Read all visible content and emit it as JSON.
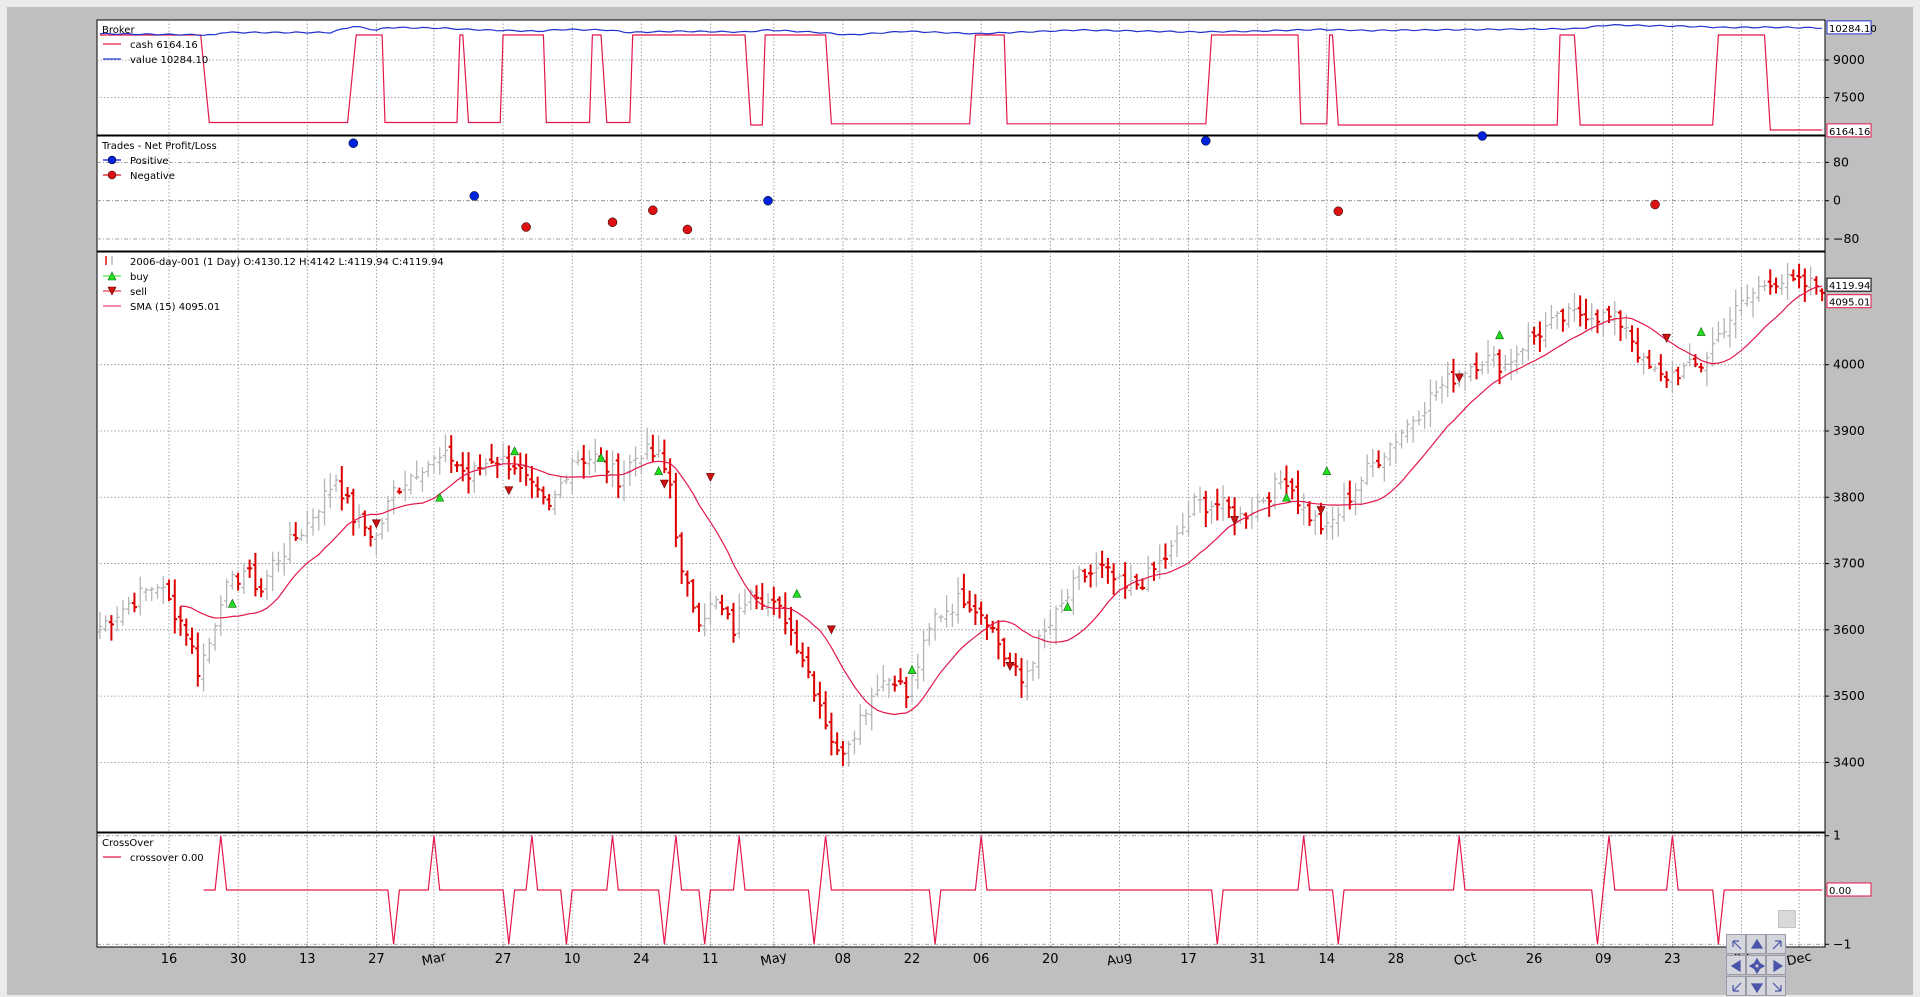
{
  "colors": {
    "up_bar": "#b4b4b4",
    "down_bar": "#dd0000",
    "sma": "#e4174b",
    "cash": "#e4174b",
    "value": "#2233cc",
    "positive": "#0022dd",
    "negative": "#dd1111",
    "buy": "#22dd22",
    "sell": "#cc1111",
    "crossover": "#e4174b"
  },
  "toolbar": {
    "icons": [
      "pan-nw-icon",
      "pan-up-icon",
      "pan-ne-icon",
      "pan-left-icon",
      "pan-move-icon",
      "pan-right-icon",
      "pan-sw-icon",
      "pan-down-icon",
      "pan-se-icon"
    ]
  },
  "chart_data": [
    {
      "type": "line",
      "panel": "broker",
      "title": "Broker",
      "legend": [
        {
          "name": "cash 6164.16",
          "color": "#e4174b"
        },
        {
          "name": "value 10284.10",
          "color": "#2233cc"
        }
      ],
      "yticks": [
        7500,
        9000
      ],
      "ylim": [
        6000,
        10600
      ],
      "last_labels": [
        {
          "text": "10284.10",
          "value": 10284.1,
          "color": "#2233cc"
        },
        {
          "text": "6164.16",
          "value": 6164.16,
          "color": "#e4174b"
        }
      ],
      "cash_segments": [
        [
          0,
          10000
        ],
        [
          17.5,
          10000
        ],
        [
          19,
          6500
        ],
        [
          43,
          6500
        ],
        [
          44.5,
          10000
        ],
        [
          49,
          10000
        ],
        [
          49.5,
          6500
        ],
        [
          62,
          6500
        ],
        [
          62.5,
          10000
        ],
        [
          63,
          10000
        ],
        [
          64,
          6500
        ],
        [
          69.5,
          6500
        ],
        [
          70,
          10000
        ],
        [
          77,
          10000
        ],
        [
          77.5,
          6500
        ],
        [
          85,
          6500
        ],
        [
          85.5,
          10000
        ],
        [
          87,
          10000
        ],
        [
          88,
          6500
        ],
        [
          92,
          6500
        ],
        [
          92.5,
          10000
        ],
        [
          112,
          10000
        ],
        [
          113,
          6400
        ],
        [
          115,
          6400
        ],
        [
          115.5,
          10000
        ],
        [
          126,
          10000
        ],
        [
          127,
          6450
        ],
        [
          151,
          6450
        ],
        [
          152,
          10000
        ],
        [
          157,
          10000
        ],
        [
          157.5,
          6450
        ],
        [
          192,
          6450
        ],
        [
          193,
          10000
        ],
        [
          208,
          10000
        ],
        [
          208.5,
          6450
        ],
        [
          213,
          6450
        ],
        [
          213.5,
          10000
        ],
        [
          214,
          10000
        ],
        [
          215,
          6400
        ],
        [
          253,
          6400
        ],
        [
          253.5,
          10000
        ],
        [
          256,
          10000
        ],
        [
          257,
          6400
        ],
        [
          280,
          6400
        ],
        [
          281,
          10000
        ],
        [
          289,
          10000
        ],
        [
          290,
          6200
        ],
        [
          299,
          6200
        ]
      ],
      "value_points": [
        [
          0,
          10050
        ],
        [
          20,
          10000
        ],
        [
          21,
          10100
        ],
        [
          40,
          10100
        ],
        [
          44,
          10350
        ],
        [
          48,
          10200
        ],
        [
          50,
          10300
        ],
        [
          60,
          10270
        ],
        [
          63,
          10230
        ],
        [
          67,
          10200
        ],
        [
          76,
          10150
        ],
        [
          80,
          10220
        ],
        [
          88,
          10200
        ],
        [
          92,
          10100
        ],
        [
          100,
          10150
        ],
        [
          112,
          10120
        ],
        [
          116,
          10200
        ],
        [
          125,
          10100
        ],
        [
          130,
          10000
        ],
        [
          140,
          10150
        ],
        [
          152,
          10050
        ],
        [
          158,
          10100
        ],
        [
          170,
          10200
        ],
        [
          190,
          10120
        ],
        [
          200,
          10150
        ],
        [
          208,
          10200
        ],
        [
          212,
          10220
        ],
        [
          220,
          10180
        ],
        [
          240,
          10220
        ],
        [
          256,
          10250
        ],
        [
          262,
          10400
        ],
        [
          275,
          10350
        ],
        [
          282,
          10300
        ],
        [
          290,
          10310
        ],
        [
          299,
          10284.1
        ]
      ]
    },
    {
      "type": "scatter",
      "panel": "trades",
      "title": "Trades - Net Profit/Loss",
      "legend": [
        {
          "name": "Positive",
          "color": "#0022dd"
        },
        {
          "name": "Negative",
          "color": "#dd1111"
        }
      ],
      "yticks": [
        -80,
        0,
        80
      ],
      "ylim": [
        -105,
        135
      ],
      "series": [
        {
          "name": "Positive",
          "points": [
            [
              44,
              120
            ],
            [
              65,
              10
            ],
            [
              116,
              0
            ],
            [
              192,
              125
            ],
            [
              240,
              135
            ]
          ]
        },
        {
          "name": "Negative",
          "points": [
            [
              74,
              -55
            ],
            [
              89,
              -45
            ],
            [
              96,
              -20
            ],
            [
              102,
              -60
            ],
            [
              215,
              -22
            ],
            [
              270,
              -8
            ]
          ]
        }
      ]
    },
    {
      "type": "candlestick",
      "panel": "price",
      "legend_title": "2006-day-001 (1 Day) O:4130.12 H:4142 L:4119.94 C:4119.94",
      "legend": [
        {
          "name": "buy",
          "color": "#22dd22"
        },
        {
          "name": "sell",
          "color": "#cc1111"
        },
        {
          "name": "SMA (15) 4095.01",
          "color": "#e4174b"
        }
      ],
      "yticks": [
        3400,
        3500,
        3600,
        3700,
        3800,
        3900,
        4000
      ],
      "ylim": [
        3295,
        4170
      ],
      "last_labels": [
        {
          "text": "4119.94",
          "value": 4119.94,
          "color": "#000000"
        },
        {
          "text": "4095.01",
          "value": 4095.01,
          "color": "#e4174b"
        }
      ],
      "anchors": [
        [
          0,
          3605
        ],
        [
          5,
          3640
        ],
        [
          10,
          3670
        ],
        [
          15,
          3600
        ],
        [
          17,
          3540
        ],
        [
          19,
          3580
        ],
        [
          21,
          3650
        ],
        [
          25,
          3690
        ],
        [
          28,
          3660
        ],
        [
          30,
          3700
        ],
        [
          36,
          3760
        ],
        [
          41,
          3830
        ],
        [
          44,
          3770
        ],
        [
          48,
          3740
        ],
        [
          51,
          3810
        ],
        [
          56,
          3850
        ],
        [
          61,
          3860
        ],
        [
          64,
          3830
        ],
        [
          68,
          3860
        ],
        [
          72,
          3850
        ],
        [
          75,
          3810
        ],
        [
          78,
          3780
        ],
        [
          82,
          3860
        ],
        [
          86,
          3860
        ],
        [
          90,
          3830
        ],
        [
          94,
          3870
        ],
        [
          97,
          3860
        ],
        [
          99,
          3820
        ],
        [
          101,
          3680
        ],
        [
          104,
          3620
        ],
        [
          107,
          3640
        ],
        [
          110,
          3600
        ],
        [
          113,
          3670
        ],
        [
          116,
          3640
        ],
        [
          119,
          3620
        ],
        [
          122,
          3560
        ],
        [
          125,
          3490
        ],
        [
          128,
          3410
        ],
        [
          131,
          3450
        ],
        [
          135,
          3520
        ],
        [
          138,
          3530
        ],
        [
          140,
          3500
        ],
        [
          145,
          3620
        ],
        [
          150,
          3650
        ],
        [
          154,
          3620
        ],
        [
          157,
          3560
        ],
        [
          160,
          3520
        ],
        [
          163,
          3580
        ],
        [
          166,
          3620
        ],
        [
          170,
          3680
        ],
        [
          174,
          3690
        ],
        [
          178,
          3660
        ],
        [
          182,
          3680
        ],
        [
          186,
          3720
        ],
        [
          190,
          3790
        ],
        [
          194,
          3790
        ],
        [
          198,
          3770
        ],
        [
          202,
          3800
        ],
        [
          206,
          3830
        ],
        [
          209,
          3780
        ],
        [
          213,
          3750
        ],
        [
          216,
          3790
        ],
        [
          220,
          3840
        ],
        [
          224,
          3880
        ],
        [
          228,
          3920
        ],
        [
          232,
          3960
        ],
        [
          236,
          3990
        ],
        [
          240,
          4010
        ],
        [
          244,
          4000
        ],
        [
          247,
          4030
        ],
        [
          250,
          4050
        ],
        [
          254,
          4070
        ],
        [
          258,
          4080
        ],
        [
          262,
          4070
        ],
        [
          265,
          4060
        ],
        [
          268,
          4000
        ],
        [
          271,
          3980
        ],
        [
          274,
          3990
        ],
        [
          278,
          4000
        ],
        [
          282,
          4060
        ],
        [
          286,
          4100
        ],
        [
          290,
          4130
        ],
        [
          295,
          4120
        ],
        [
          299,
          4120
        ]
      ],
      "buy_signals": [
        [
          23,
          3640
        ],
        [
          59,
          3800
        ],
        [
          72,
          3870
        ],
        [
          87,
          3860
        ],
        [
          97,
          3840
        ],
        [
          121,
          3655
        ],
        [
          141,
          3540
        ],
        [
          168,
          3635
        ],
        [
          206,
          3800
        ],
        [
          213,
          3840
        ],
        [
          243,
          4045
        ],
        [
          278,
          4050
        ]
      ],
      "sell_signals": [
        [
          48,
          3760
        ],
        [
          71,
          3810
        ],
        [
          98,
          3820
        ],
        [
          106,
          3830
        ],
        [
          127,
          3600
        ],
        [
          158,
          3545
        ],
        [
          197,
          3765
        ],
        [
          212,
          3780
        ],
        [
          236,
          3980
        ],
        [
          272,
          4040
        ]
      ],
      "x_ticks": [
        {
          "i": 12,
          "label": "16"
        },
        {
          "i": 24,
          "label": "30"
        },
        {
          "i": 36,
          "label": "13"
        },
        {
          "i": 48,
          "label": "27"
        },
        {
          "i": 58,
          "label": "Mar",
          "rot": true
        },
        {
          "i": 70,
          "label": "27"
        },
        {
          "i": 82,
          "label": "10"
        },
        {
          "i": 94,
          "label": "24"
        },
        {
          "i": 106,
          "label": "11"
        },
        {
          "i": 117,
          "label": "May",
          "rot": true
        },
        {
          "i": 129,
          "label": "08"
        },
        {
          "i": 141,
          "label": "22"
        },
        {
          "i": 153,
          "label": "06"
        },
        {
          "i": 165,
          "label": "20"
        },
        {
          "i": 177,
          "label": "Aug",
          "rot": true
        },
        {
          "i": 189,
          "label": "17"
        },
        {
          "i": 201,
          "label": "31"
        },
        {
          "i": 213,
          "label": "14"
        },
        {
          "i": 225,
          "label": "28"
        },
        {
          "i": 237,
          "label": "Oct",
          "rot": true
        },
        {
          "i": 249,
          "label": "26"
        },
        {
          "i": 261,
          "label": "09"
        },
        {
          "i": 273,
          "label": "23"
        },
        {
          "i": 285,
          "label": "07"
        },
        {
          "i": 295,
          "label": "Dec",
          "rot": true
        }
      ]
    },
    {
      "type": "line",
      "panel": "crossover",
      "title": "CrossOver",
      "legend": [
        {
          "name": "crossover 0.00",
          "color": "#e4174b"
        }
      ],
      "yticks": [
        -1,
        1
      ],
      "ylim": [
        -1.05,
        1.05
      ],
      "last_labels": [
        {
          "text": "0.00",
          "value": 0,
          "color": "#e4174b"
        }
      ],
      "start_index": 18,
      "cross_up": [
        21,
        58,
        89,
        97,
        111,
        121,
        126,
        150,
        176,
        213,
        236,
        273,
        302
      ],
      "cross_down": [
        74,
        89,
        104,
        112,
        130,
        145,
        171,
        225,
        234,
        297,
        355
      ],
      "crossings": [
        [
          21,
          1
        ],
        [
          51,
          -1
        ],
        [
          58,
          1
        ],
        [
          71,
          -1
        ],
        [
          75,
          1
        ],
        [
          81,
          -1
        ],
        [
          89,
          1
        ],
        [
          98,
          -1
        ],
        [
          100,
          1
        ],
        [
          105,
          -1
        ],
        [
          111,
          1
        ],
        [
          124,
          -1
        ],
        [
          126,
          1
        ],
        [
          145,
          -1
        ],
        [
          153,
          1
        ],
        [
          194,
          -1
        ],
        [
          209,
          1
        ],
        [
          215,
          -1
        ],
        [
          236,
          1
        ],
        [
          260,
          -1
        ],
        [
          262,
          1
        ],
        [
          273,
          1
        ],
        [
          281,
          -1
        ]
      ]
    }
  ]
}
